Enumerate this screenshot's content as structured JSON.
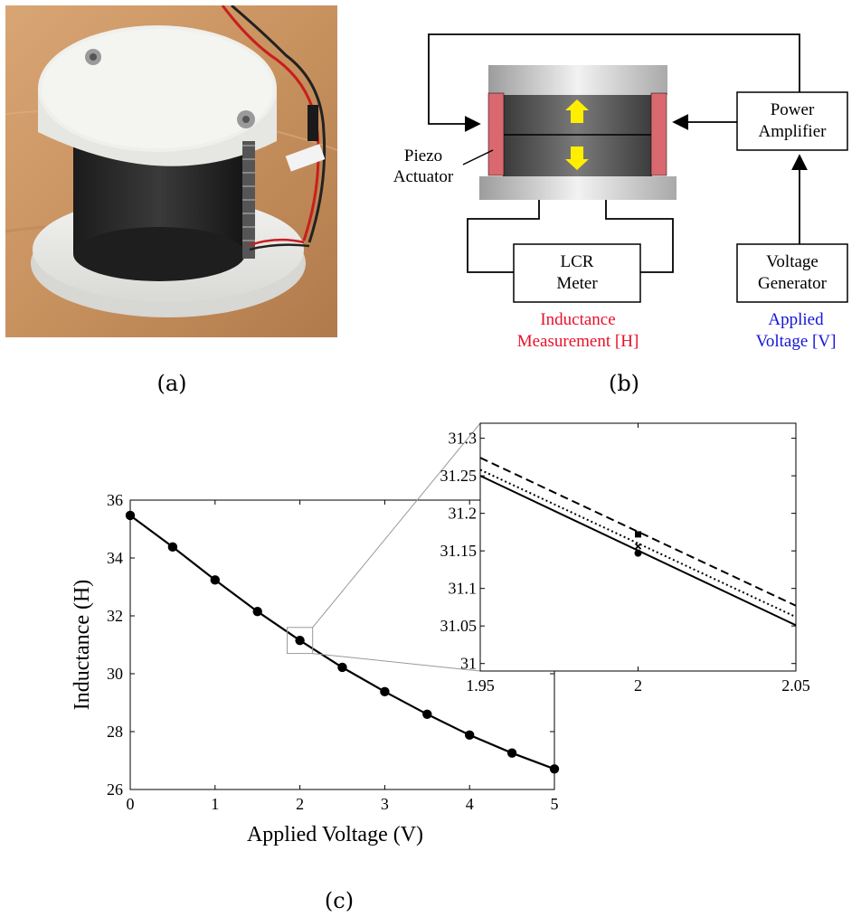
{
  "captions": {
    "a": "(a)",
    "b": "(b)",
    "c": "(c)"
  },
  "diagram": {
    "piezo_label": [
      "Piezo",
      "Actuator"
    ],
    "power_amp": [
      "Power",
      "Amplifier"
    ],
    "lcr": [
      "LCR",
      "Meter"
    ],
    "voltage_gen": [
      "Voltage",
      "Generator"
    ],
    "inductance_meas": [
      "Inductance",
      "Measurement [H]"
    ],
    "applied_voltage": [
      "Applied",
      "Voltage [V]"
    ],
    "colors": {
      "inductance": "#e8102a",
      "applied": "#1414d8",
      "piezo": "#d9696f",
      "arrow": "#ffee00"
    }
  },
  "chart_data": [
    {
      "type": "line",
      "xlabel": "Applied Voltage (V)",
      "ylabel": "Inductance (H)",
      "xlim": [
        0,
        5
      ],
      "ylim": [
        26,
        36
      ],
      "xticks": [
        "0",
        "1",
        "2",
        "3",
        "4",
        "5"
      ],
      "yticks": [
        "26",
        "28",
        "30",
        "32",
        "34",
        "36"
      ],
      "x": [
        0,
        0.5,
        1,
        1.5,
        2,
        2.5,
        3,
        3.5,
        4,
        4.5,
        5
      ],
      "y": [
        35.47,
        34.38,
        33.24,
        32.15,
        31.15,
        30.22,
        29.38,
        28.6,
        27.88,
        27.26,
        26.71
      ],
      "markers": "filled-circle"
    },
    {
      "type": "line",
      "xlim": [
        1.95,
        2.05
      ],
      "ylim": [
        30.99,
        31.32
      ],
      "xticks": [
        "1.95",
        "2",
        "2.05"
      ],
      "yticks": [
        "31",
        "31.05",
        "31.1",
        "31.15",
        "31.2",
        "31.25",
        "31.3"
      ],
      "series": [
        {
          "style": "dashed",
          "x": [
            1.95,
            2.05
          ],
          "y": [
            31.274,
            31.077
          ]
        },
        {
          "style": "dotted",
          "x": [
            1.95,
            2.05
          ],
          "y": [
            31.258,
            31.062
          ]
        },
        {
          "style": "solid",
          "x": [
            1.95,
            2.05
          ],
          "y": [
            31.25,
            31.051
          ]
        }
      ],
      "points": [
        {
          "marker": "square",
          "x": 2,
          "y": 31.172
        },
        {
          "marker": "cross",
          "x": 2,
          "y": 31.156
        },
        {
          "marker": "circle",
          "x": 2,
          "y": 31.147
        }
      ]
    }
  ]
}
